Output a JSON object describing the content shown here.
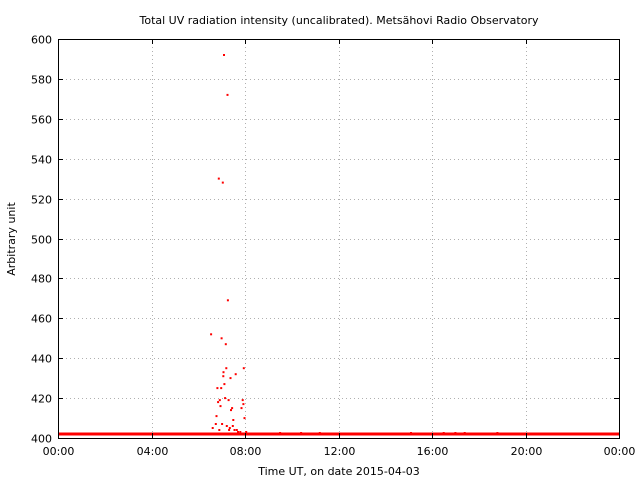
{
  "chart_data": {
    "type": "scatter",
    "title": "Total UV radiation intensity (uncalibrated). Metsähovi Radio Observatory",
    "xlabel": "Time UT, on date 2015-04-03",
    "ylabel": "Arbitrary unit",
    "xlim": [
      0,
      24
    ],
    "ylim": [
      400,
      600
    ],
    "x_unit": "hours UT",
    "x_ticks": [
      {
        "value": 0,
        "label": "00:00"
      },
      {
        "value": 4,
        "label": "04:00"
      },
      {
        "value": 8,
        "label": "08:00"
      },
      {
        "value": 12,
        "label": "12:00"
      },
      {
        "value": 16,
        "label": "16:00"
      },
      {
        "value": 20,
        "label": "20:00"
      },
      {
        "value": 24,
        "label": "00:00"
      }
    ],
    "y_ticks": [
      400,
      420,
      440,
      460,
      480,
      500,
      520,
      540,
      560,
      580,
      600
    ],
    "grid": true,
    "grid_style": "dotted",
    "marker_color": "#ff0000",
    "baseline": {
      "value": 402,
      "x_range": [
        0,
        24
      ]
    },
    "series": [
      {
        "points": [
          [
            6.55,
            452
          ],
          [
            6.62,
            405
          ],
          [
            6.7,
            402
          ],
          [
            6.75,
            407
          ],
          [
            6.78,
            411
          ],
          [
            6.82,
            425
          ],
          [
            6.85,
            418
          ],
          [
            6.88,
            530
          ],
          [
            6.9,
            404
          ],
          [
            6.92,
            419
          ],
          [
            6.95,
            416
          ],
          [
            6.98,
            425
          ],
          [
            7.0,
            450
          ],
          [
            7.02,
            407
          ],
          [
            7.05,
            528
          ],
          [
            7.07,
            431
          ],
          [
            7.08,
            433
          ],
          [
            7.1,
            592
          ],
          [
            7.12,
            427
          ],
          [
            7.15,
            420
          ],
          [
            7.18,
            447
          ],
          [
            7.2,
            435
          ],
          [
            7.22,
            406
          ],
          [
            7.25,
            572
          ],
          [
            7.27,
            469
          ],
          [
            7.3,
            419
          ],
          [
            7.32,
            404
          ],
          [
            7.35,
            405
          ],
          [
            7.38,
            430
          ],
          [
            7.4,
            414
          ],
          [
            7.45,
            415
          ],
          [
            7.48,
            406
          ],
          [
            7.5,
            409
          ],
          [
            7.55,
            404
          ],
          [
            7.6,
            432
          ],
          [
            7.65,
            404
          ],
          [
            7.7,
            403
          ],
          [
            7.8,
            403
          ],
          [
            7.85,
            415
          ],
          [
            7.9,
            419
          ],
          [
            7.93,
            417
          ],
          [
            7.95,
            435
          ],
          [
            7.98,
            410
          ],
          [
            8.05,
            403
          ],
          [
            9.5,
            402.5
          ],
          [
            10.4,
            402.5
          ],
          [
            11.2,
            402.5
          ],
          [
            15.1,
            402.5
          ],
          [
            16.5,
            402.5
          ],
          [
            17.0,
            402.5
          ],
          [
            17.4,
            402.5
          ],
          [
            18.8,
            402.5
          ]
        ]
      }
    ]
  }
}
